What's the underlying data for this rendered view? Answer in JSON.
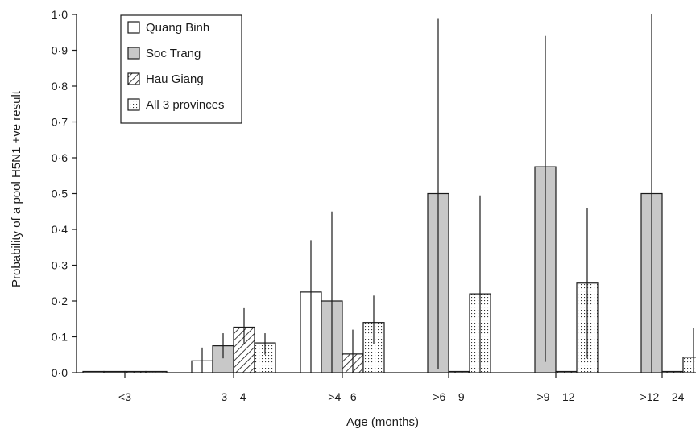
{
  "chart_data": {
    "type": "bar",
    "title": "",
    "xlabel": "Age (months)",
    "ylabel": "Probability of a pool H5N1 +ve result",
    "ylim": [
      0,
      1.0
    ],
    "yticks": [
      "0·0",
      "0·1",
      "0·2",
      "0·3",
      "0·4",
      "0·5",
      "0·6",
      "0·7",
      "0·8",
      "0·9",
      "1·0"
    ],
    "grid": false,
    "legend_position": "top-left",
    "error_bars": true,
    "categories": [
      "<3",
      "3 – 4",
      ">4 –6",
      ">6 – 9",
      ">9 – 12",
      ">12 – 24"
    ],
    "series": [
      {
        "name": "Quang Binh",
        "fill": "white",
        "values": [
          0.0,
          0.033,
          0.225,
          null,
          null,
          null
        ],
        "lower": [
          0.0,
          0.0,
          0.0,
          null,
          null,
          null
        ],
        "upper": [
          0.0,
          0.07,
          0.37,
          null,
          null,
          null
        ]
      },
      {
        "name": "Soc Trang",
        "fill": "gray",
        "values": [
          0.0,
          0.075,
          0.2,
          0.5,
          0.575,
          0.5
        ],
        "lower": [
          0.0,
          0.04,
          0.0,
          0.01,
          0.03,
          0.0
        ],
        "upper": [
          0.0,
          0.11,
          0.45,
          0.99,
          0.94,
          1.0
        ]
      },
      {
        "name": "Hau Giang",
        "fill": "hatched",
        "values": [
          0.0,
          0.127,
          0.052,
          0.0,
          0.0,
          0.0
        ],
        "lower": [
          0.0,
          0.08,
          0.0,
          0.0,
          0.0,
          0.0
        ],
        "upper": [
          0.0,
          0.18,
          0.12,
          0.0,
          0.0,
          0.0
        ]
      },
      {
        "name": "All 3 provinces",
        "fill": "dotted",
        "values": [
          0.0,
          0.083,
          0.14,
          0.22,
          0.25,
          0.043
        ],
        "lower": [
          0.0,
          0.05,
          0.08,
          0.0,
          0.04,
          0.0
        ],
        "upper": [
          0.0,
          0.11,
          0.215,
          0.495,
          0.46,
          0.125
        ]
      }
    ]
  }
}
